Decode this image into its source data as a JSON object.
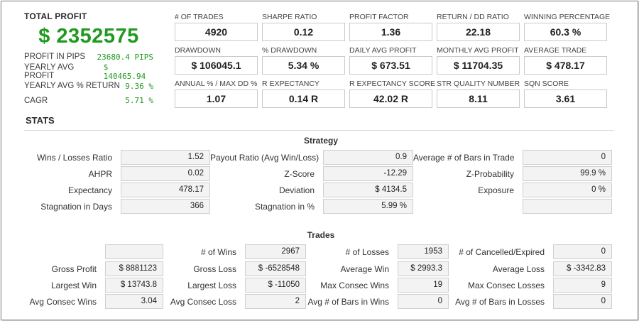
{
  "summary": {
    "total_profit_label": "TOTAL PROFIT",
    "total_profit_value": "$ 2352575",
    "items": [
      {
        "label": "PROFIT IN PIPS",
        "value": "23680.4 PIPS"
      },
      {
        "label": "YEARLY AVG PROFIT",
        "value": "$ 140465.94"
      },
      {
        "label": "YEARLY AVG % RETURN",
        "value": "9.36 %"
      },
      {
        "label": "CAGR",
        "value": "5.71 %"
      }
    ]
  },
  "metrics": [
    {
      "label": "# OF TRADES",
      "value": "4920"
    },
    {
      "label": "SHARPE RATIO",
      "value": "0.12"
    },
    {
      "label": "PROFIT FACTOR",
      "value": "1.36"
    },
    {
      "label": "RETURN / DD RATIO",
      "value": "22.18"
    },
    {
      "label": "WINNING PERCENTAGE",
      "value": "60.3 %"
    },
    {
      "label": "DRAWDOWN",
      "value": "$ 106045.1"
    },
    {
      "label": "% DRAWDOWN",
      "value": "5.34 %"
    },
    {
      "label": "DAILY AVG PROFIT",
      "value": "$ 673.51"
    },
    {
      "label": "MONTHLY AVG PROFIT",
      "value": "$ 11704.35"
    },
    {
      "label": "AVERAGE TRADE",
      "value": "$ 478.17"
    },
    {
      "label": "ANNUAL % / MAX DD %",
      "value": "1.07"
    },
    {
      "label": "R EXPECTANCY",
      "value": "0.14 R"
    },
    {
      "label": "R EXPECTANCY SCORE",
      "value": "42.02 R"
    },
    {
      "label": "STR QUALITY NUMBER",
      "value": "8.11"
    },
    {
      "label": "SQN SCORE",
      "value": "3.61"
    }
  ],
  "stats": {
    "title": "STATS",
    "strategy": {
      "title": "Strategy",
      "rows": [
        [
          {
            "label": "Wins / Losses Ratio",
            "value": "1.52"
          },
          {
            "label": "Payout Ratio (Avg Win/Loss)",
            "value": "0.9"
          },
          {
            "label": "Average # of Bars in Trade",
            "value": "0"
          }
        ],
        [
          {
            "label": "AHPR",
            "value": "0.02"
          },
          {
            "label": "Z-Score",
            "value": "-12.29"
          },
          {
            "label": "Z-Probability",
            "value": "99.9 %"
          }
        ],
        [
          {
            "label": "Expectancy",
            "value": "478.17"
          },
          {
            "label": "Deviation",
            "value": "$ 4134.5"
          },
          {
            "label": "Exposure",
            "value": "0 %"
          }
        ],
        [
          {
            "label": "Stagnation in Days",
            "value": "366"
          },
          {
            "label": "Stagnation in %",
            "value": "5.99 %"
          },
          {
            "label": "",
            "value": ""
          }
        ]
      ]
    },
    "trades": {
      "title": "Trades",
      "rows": [
        [
          {
            "label": "",
            "value": ""
          },
          {
            "label": "# of Wins",
            "value": "2967"
          },
          {
            "label": "# of Losses",
            "value": "1953"
          },
          {
            "label": "# of Cancelled/Expired",
            "value": "0"
          }
        ],
        [
          {
            "label": "Gross Profit",
            "value": "$ 8881123"
          },
          {
            "label": "Gross Loss",
            "value": "$ -6528548"
          },
          {
            "label": "Average Win",
            "value": "$ 2993.3"
          },
          {
            "label": "Average Loss",
            "value": "$ -3342.83"
          }
        ],
        [
          {
            "label": "Largest Win",
            "value": "$ 13743.8"
          },
          {
            "label": "Largest Loss",
            "value": "$ -11050"
          },
          {
            "label": "Max Consec Wins",
            "value": "19"
          },
          {
            "label": "Max Consec Losses",
            "value": "9"
          }
        ],
        [
          {
            "label": "Avg Consec Wins",
            "value": "3.04"
          },
          {
            "label": "Avg Consec Loss",
            "value": "2"
          },
          {
            "label": "Avg # of Bars in Wins",
            "value": "0"
          },
          {
            "label": "Avg # of Bars in Losses",
            "value": "0"
          }
        ]
      ]
    }
  }
}
